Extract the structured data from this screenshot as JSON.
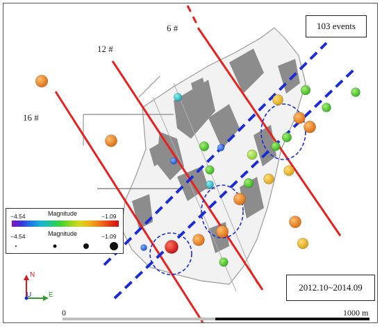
{
  "event_count_label": "103 events",
  "date_range_label": "2012.10~2014.09",
  "working_face_labels": [
    "6 #",
    "12 #",
    "16 #"
  ],
  "legend": {
    "color_title": "Magnitude",
    "size_title": "Magnitude",
    "min_label": "−4.54",
    "max_label": "−1.09",
    "colormap": [
      "#8a0fc9",
      "#3a34d8",
      "#1b7de6",
      "#17b3d6",
      "#1fc68a",
      "#3cd23a",
      "#8fd81c",
      "#d8d81a",
      "#f0b018",
      "#f07a18",
      "#e83d18",
      "#d11010"
    ]
  },
  "scale_bar": {
    "start_label": "0",
    "end_label": "1000 m"
  },
  "compass": {
    "north_label": "N",
    "east_label": "E",
    "up_label": "U"
  },
  "colors": {
    "working_face_line": "#e8201e",
    "fault_line": "#1b2bd6",
    "mine_outline": "#9a9a9a",
    "goaf_fill": "#8c8c8c"
  },
  "events": [
    {
      "color": "orange",
      "magnitude": -1.5
    },
    {
      "color": "orange",
      "magnitude": -1.6
    },
    {
      "color": "orange",
      "magnitude": -1.7
    },
    {
      "color": "orange",
      "magnitude": -1.6
    },
    {
      "color": "orange",
      "magnitude": -1.5
    },
    {
      "color": "orange",
      "magnitude": -1.6
    },
    {
      "color": "orange",
      "magnitude": -1.6
    },
    {
      "color": "orange",
      "magnitude": -1.7
    },
    {
      "color": "red",
      "magnitude": -1.09
    },
    {
      "color": "green",
      "magnitude": -2.6
    },
    {
      "color": "green",
      "magnitude": -2.5
    },
    {
      "color": "green",
      "magnitude": -2.7
    },
    {
      "color": "green",
      "magnitude": -2.6
    },
    {
      "color": "green",
      "magnitude": -2.6
    },
    {
      "color": "green",
      "magnitude": -2.7
    },
    {
      "color": "green",
      "magnitude": -2.8
    },
    {
      "color": "green",
      "magnitude": -2.8
    },
    {
      "color": "green",
      "magnitude": -2.8
    },
    {
      "color": "yellow",
      "magnitude": -2.1
    },
    {
      "color": "yellow",
      "magnitude": -2.2
    },
    {
      "color": "yellow",
      "magnitude": -2.2
    },
    {
      "color": "yellow",
      "magnitude": -2.0
    },
    {
      "color": "blue",
      "magnitude": -3.6
    },
    {
      "color": "blue",
      "magnitude": -3.7
    },
    {
      "color": "blue",
      "magnitude": -3.5
    },
    {
      "color": "cyan",
      "magnitude": -3.2
    },
    {
      "color": "cyan",
      "magnitude": -3.1
    },
    {
      "color": "lightgreen",
      "magnitude": -2.4
    }
  ]
}
